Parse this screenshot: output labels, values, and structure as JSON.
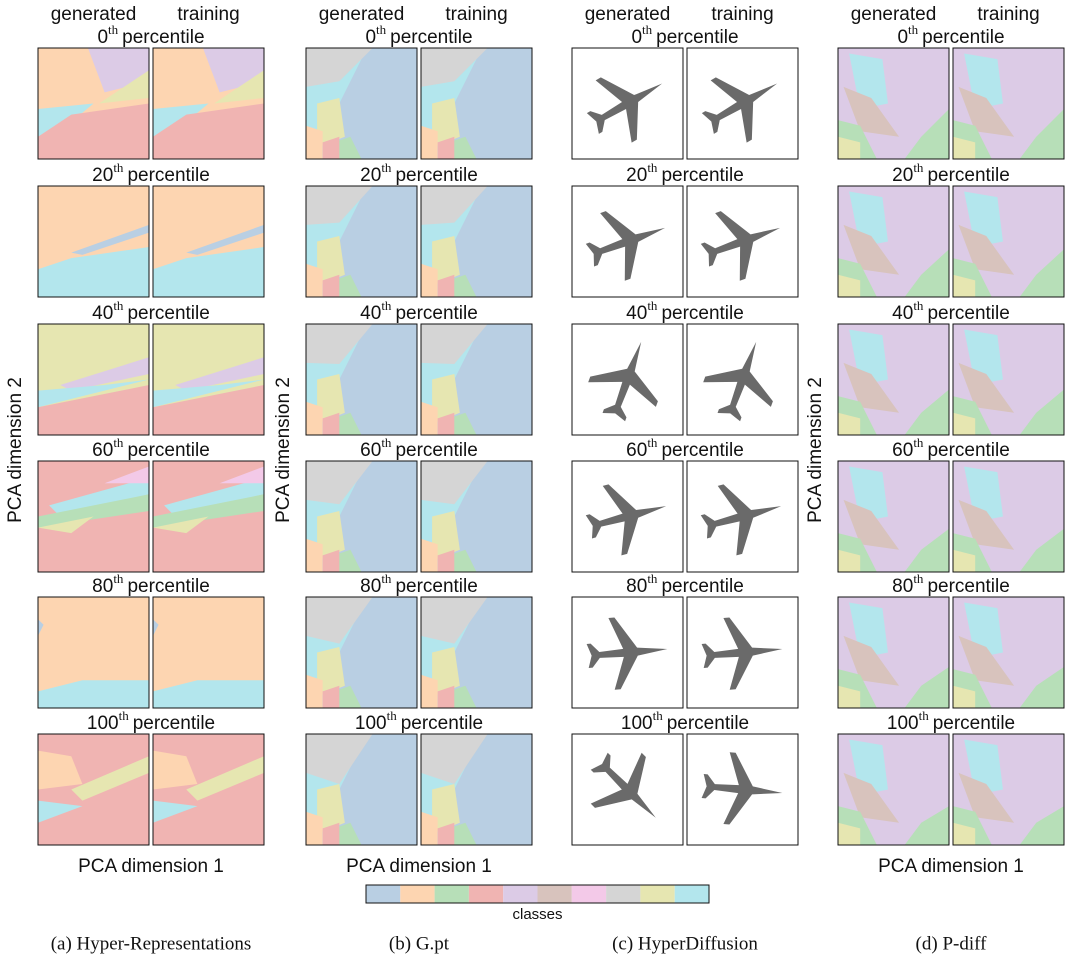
{
  "columns": [
    {
      "header_left": "generated",
      "header_right": "training",
      "y_label": "PCA dimension 2",
      "x_label": "PCA dimension 1",
      "caption": "(a) Hyper-Representations"
    },
    {
      "header_left": "generated",
      "header_right": "training",
      "y_label": "PCA dimension 2",
      "x_label": "PCA dimension 1",
      "caption": "(b) G.pt"
    },
    {
      "header_left": "generated",
      "header_right": "training",
      "caption": "(c) HyperDiffusion"
    },
    {
      "header_left": "generated",
      "header_right": "training",
      "y_label": "PCA dimension 2",
      "x_label": "PCA dimension 1",
      "caption": "(d) P-diff"
    }
  ],
  "percentiles": [
    {
      "number": "0",
      "suffix": "th",
      "word": "percentile"
    },
    {
      "number": "20",
      "suffix": "th",
      "word": "percentile"
    },
    {
      "number": "40",
      "suffix": "th",
      "word": "percentile"
    },
    {
      "number": "60",
      "suffix": "th",
      "word": "percentile"
    },
    {
      "number": "80",
      "suffix": "th",
      "word": "percentile"
    },
    {
      "number": "100",
      "suffix": "th",
      "word": "percentile"
    }
  ],
  "colorbar": {
    "colors": [
      "#b9cfe3",
      "#fdd5b1",
      "#b7dfb8",
      "#f0b4b2",
      "#dccbe6",
      "#d8c3bd",
      "#f3c9e8",
      "#d5d5d5",
      "#e6e6b1",
      "#b3e6ed"
    ],
    "label": "classes"
  }
}
